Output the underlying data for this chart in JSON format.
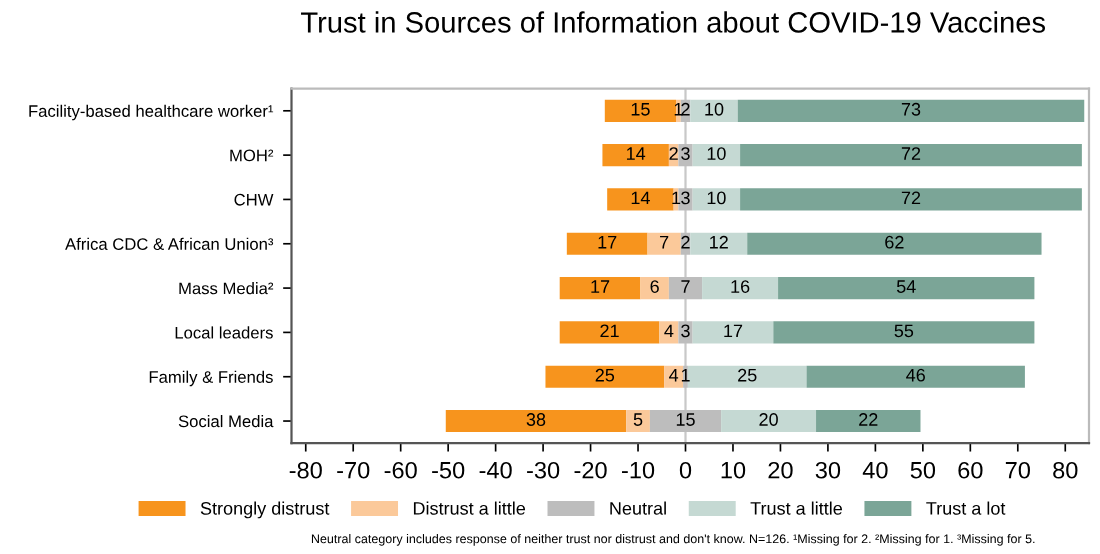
{
  "chart_data": {
    "type": "bar",
    "orientation": "horizontal",
    "title": "Trust in Sources of Information about COVID-19 Vaccines",
    "categories": [
      "Facility-based healthcare worker¹",
      "MOH²",
      "CHW",
      "Africa CDC & African Union³",
      "Mass Media²",
      "Local leaders",
      "Family & Friends",
      "Social Media"
    ],
    "series": [
      {
        "name": "Strongly distrust",
        "color": "#f7941d",
        "values": [
          15,
          14,
          14,
          17,
          17,
          21,
          25,
          38
        ],
        "base": [
          -17,
          -17.5,
          -16.5,
          -25,
          -26.5,
          -26.5,
          -29.5,
          -50.5
        ]
      },
      {
        "name": "Distrust a little",
        "color": "#fbc99a",
        "values": [
          1,
          2,
          1,
          7,
          6,
          4,
          4,
          5
        ],
        "base": [
          -2,
          -3.5,
          -2.5,
          -8,
          -9.5,
          -5.5,
          -4.5,
          -12.5
        ]
      },
      {
        "name": "Neutral",
        "color": "#bdbdbd",
        "values": [
          2,
          3,
          3,
          2,
          7,
          3,
          1,
          15
        ],
        "base": [
          -1,
          -1.5,
          -1.5,
          -1,
          -3.5,
          -1.5,
          -0.5,
          -7.5
        ]
      },
      {
        "name": "Trust a little",
        "color": "#c5d9d3",
        "values": [
          10,
          10,
          10,
          12,
          16,
          17,
          25,
          20
        ],
        "base": [
          1,
          1.5,
          1.5,
          1,
          3.5,
          1.5,
          0.5,
          7.5
        ]
      },
      {
        "name": "Trust a lot",
        "color": "#7ba597",
        "values": [
          73,
          72,
          72,
          62,
          54,
          55,
          46,
          22
        ],
        "base": [
          11,
          11.5,
          11.5,
          13,
          19.5,
          18.5,
          25.5,
          27.5
        ]
      }
    ],
    "xlim": [
      -83,
      85
    ],
    "xticks": [
      -80,
      -70,
      -60,
      -50,
      -40,
      -30,
      -20,
      -10,
      0,
      10,
      20,
      30,
      40,
      50,
      60,
      70,
      80
    ],
    "ref_lines": [
      {
        "axis": "x",
        "value": 0,
        "color": "#c8c8c8"
      }
    ],
    "data_labels": true,
    "grid": false,
    "legend": "bottom",
    "annotations": [
      "Neutral category includes response of neither trust nor distrust and don't know. N=126. ¹Missing for 2. ²Missing for 1. ³Missing for 5."
    ]
  }
}
